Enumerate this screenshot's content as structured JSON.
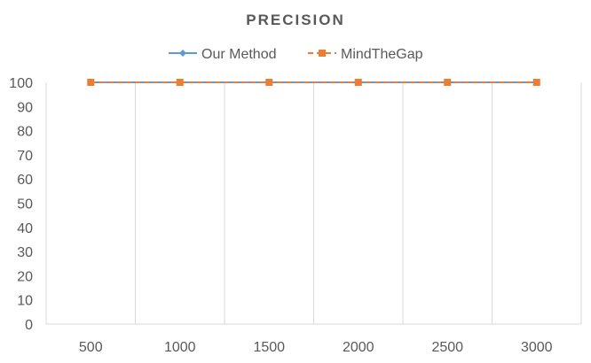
{
  "chart_data": {
    "type": "line",
    "title": "PRECISION",
    "xlabel": "",
    "ylabel": "",
    "categories": [
      "500",
      "1000",
      "1500",
      "2000",
      "2500",
      "3000"
    ],
    "ylim": [
      0,
      100
    ],
    "yticks": [
      0,
      10,
      20,
      30,
      40,
      50,
      60,
      70,
      80,
      90,
      100
    ],
    "grid": "vertical",
    "legend_position": "top",
    "series": [
      {
        "name": "Our Method",
        "values": [
          100,
          100,
          100,
          100,
          100,
          100
        ],
        "color": "#5B9BD5",
        "marker": "diamond",
        "line_style": "solid"
      },
      {
        "name": "MindTheGap",
        "values": [
          100,
          100,
          100,
          100,
          100,
          100
        ],
        "color": "#ED7D31",
        "marker": "square",
        "line_style": "dashed"
      }
    ]
  }
}
